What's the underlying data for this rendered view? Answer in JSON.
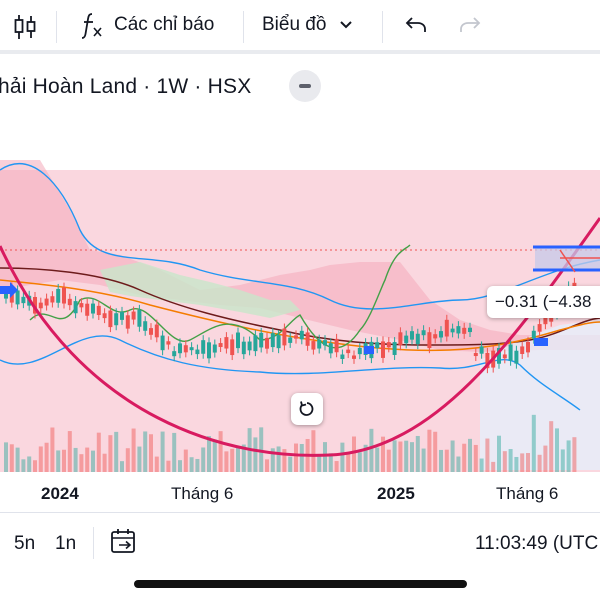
{
  "toolbar": {
    "indicators_label": "Các chỉ báo",
    "chart_type_label": "Biểu đồ"
  },
  "symbol": {
    "title": "hải Hoàn Land · 1W · HSX"
  },
  "chart": {
    "change_label": "−0.31 (−4.38",
    "time_labels": [
      "2024",
      "Tháng 6",
      "2025",
      "Tháng 6"
    ],
    "colors": {
      "up": "#26a69a",
      "down": "#ef5350",
      "cloud": "#f7c6d0",
      "curve": "#d81b60",
      "band": "#2962ff"
    }
  },
  "bottom": {
    "range_5d": "5n",
    "range_1m": "1n",
    "clock": "11:03:49 (UTC"
  }
}
